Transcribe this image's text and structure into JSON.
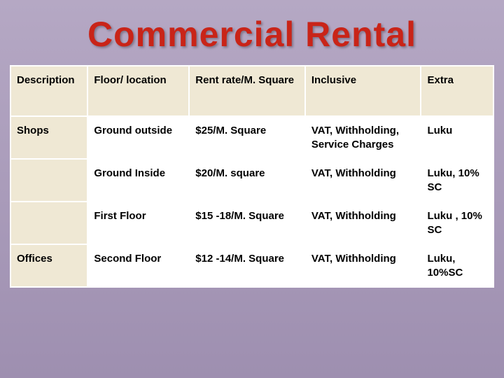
{
  "title": "Commercial Rental",
  "table": {
    "columns": [
      "Description",
      "Floor/ location",
      "Rent rate/M. Square",
      "Inclusive",
      "Extra"
    ],
    "rows": [
      {
        "description": "Shops",
        "floor": "Ground outside",
        "rate": "$25/M. Square",
        "inclusive": "VAT, Withholding, Service Charges",
        "extra": "Luku"
      },
      {
        "description": "",
        "floor": "Ground Inside",
        "rate": "$20/M. square",
        "inclusive": "VAT, Withholding",
        "extra": "Luku, 10% SC"
      },
      {
        "description": "",
        "floor": "First Floor",
        "rate": "$15 -18/M. Square",
        "inclusive": "VAT, Withholding",
        "extra": "Luku , 10% SC"
      },
      {
        "description": "Offices",
        "floor": "Second Floor",
        "rate": "$12 -14/M. Square",
        "inclusive": "VAT, Withholding",
        "extra": "Luku, 10%SC"
      }
    ]
  },
  "style": {
    "title_color": "#c92418",
    "header_bg": "#efe8d4",
    "desc_col_bg": "#efe8d4",
    "cell_bg": "#ffffff",
    "border_color": "#ffffff",
    "bg_gradient_top": "#b5a8c4",
    "bg_gradient_bottom": "#9e8fb0",
    "title_fontsize": 50,
    "cell_fontsize": 15,
    "col_widths_pct": [
      16,
      21,
      24,
      24,
      15
    ]
  }
}
